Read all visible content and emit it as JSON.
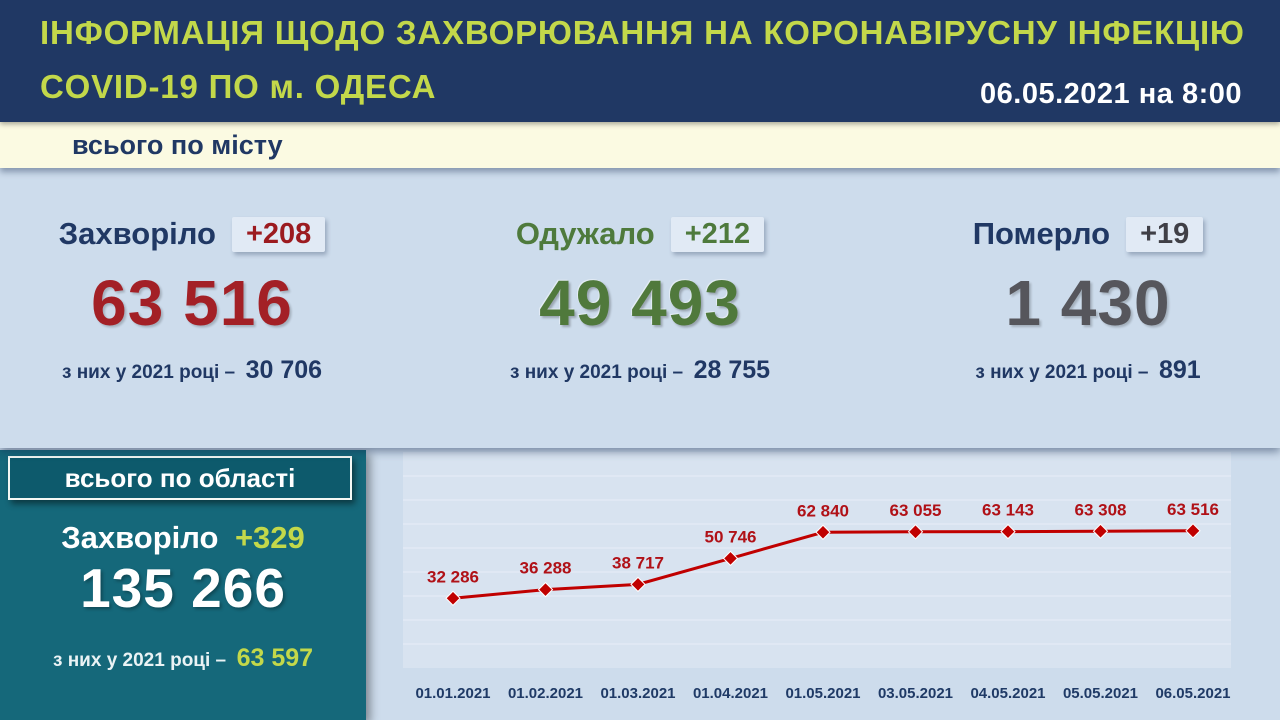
{
  "header": {
    "title_line1": "ІНФОРМАЦІЯ ЩОДО ЗАХВОРЮВАННЯ НА КОРОНАВІРУСНУ ІНФЕКЦІЮ",
    "title_line2": "COVID-19 ПО м. ОДЕСА",
    "datetime": "06.05.2021 на 8:00"
  },
  "city": {
    "section_label": "всього по місту",
    "stats": [
      {
        "name": "Захворіло",
        "delta": "+208",
        "total": "63 516",
        "year_note": "з них у 2021 році –",
        "year_total": "30 706"
      },
      {
        "name": "Одужало",
        "delta": "+212",
        "total": "49 493",
        "year_note": "з них у 2021 році –",
        "year_total": "28 755"
      },
      {
        "name": "Померло",
        "delta": "+19",
        "total": "1 430",
        "year_note": "з них у 2021 році –",
        "year_total": "891"
      }
    ]
  },
  "region": {
    "section_label": "всього по області",
    "name": "Захворіло",
    "delta": "+329",
    "total": "135 266",
    "year_note": "з них у 2021 році –",
    "year_total": "63 597"
  },
  "chart_data": {
    "type": "line",
    "title": "",
    "x": [
      "01.01.2021",
      "01.02.2021",
      "01.03.2021",
      "01.04.2021",
      "01.05.2021",
      "03.05.2021",
      "04.05.2021",
      "05.05.2021",
      "06.05.2021"
    ],
    "values": [
      32286,
      36288,
      38717,
      50746,
      62840,
      63055,
      63143,
      63308,
      63516
    ],
    "point_labels": [
      "32 286",
      "36 288",
      "38 717",
      "50 746",
      "62 840",
      "63 055",
      "63 143",
      "63 308",
      "63 516"
    ],
    "ylim": [
      0,
      100000
    ],
    "grid": true,
    "legend": "none",
    "marker": "diamond",
    "line_color": "#c00000",
    "label_color": "#b01117",
    "tick_color": "#1f3a66",
    "plot_bg": "#d8e3f0",
    "grid_color": "#e7eef7"
  },
  "colors": {
    "header_bg": "#203864",
    "accent_lime": "#c3d84a",
    "band_bg": "#fbfae2",
    "panel_bg": "#cddcec",
    "navy": "#203864",
    "infected_red": "#a32026",
    "recovered_green": "#4e7a3c",
    "deaths_gray": "#56565c",
    "region_teal": "#15687a"
  }
}
